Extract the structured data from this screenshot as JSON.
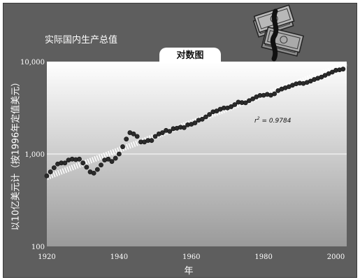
{
  "page": {
    "title": "实际国内生产总值",
    "tab_label": "对数图"
  },
  "icons": {
    "banner_icon": "money-stack-icon"
  },
  "colors": {
    "background": "#5e5e5e",
    "plot_top": "#ffffff",
    "plot_bottom": "#9a9a9a",
    "points": "#2b2b2b",
    "trend": "#ffffff"
  },
  "chart_data": {
    "type": "scatter",
    "title": "对数图",
    "xlabel": "年",
    "ylabel": "以10亿美元计（按1996年定值美元）",
    "xlim": [
      1920,
      2003
    ],
    "ylim": [
      100,
      10000
    ],
    "yscale": "log",
    "x_ticks": [
      1920,
      1940,
      1960,
      1980,
      2000
    ],
    "y_ticks": [
      100,
      1000,
      10000
    ],
    "y_tick_labels": [
      "100",
      "1,000",
      "10,000"
    ],
    "grid": "horizontal at 1,000",
    "annotation": "r² = 0.9784",
    "annotation_parts": {
      "symbol": "r",
      "superscript": "2",
      "value": "= 0.9784"
    },
    "series": [
      {
        "x": [
          1920,
          1921,
          1922,
          1923,
          1924,
          1925,
          1926,
          1927,
          1928,
          1929,
          1930,
          1931,
          1932,
          1933,
          1934,
          1935,
          1936,
          1937,
          1938,
          1939,
          1940,
          1941,
          1942,
          1943,
          1944,
          1945,
          1946,
          1947,
          1948,
          1949,
          1950,
          1951,
          1952,
          1953,
          1954,
          1955,
          1956,
          1957,
          1958,
          1959,
          1960,
          1961,
          1962,
          1963,
          1964,
          1965,
          1966,
          1967,
          1968,
          1969,
          1970,
          1971,
          1972,
          1973,
          1974,
          1975,
          1976,
          1977,
          1978,
          1979,
          1980,
          1981,
          1982,
          1983,
          1984,
          1985,
          1986,
          1987,
          1988,
          1989,
          1990,
          1991,
          1992,
          1993,
          1994,
          1995,
          1996,
          1997,
          1998,
          1999,
          2000,
          2001,
          2002
        ],
        "values": [
          580,
          640,
          710,
          780,
          800,
          800,
          860,
          880,
          870,
          880,
          800,
          720,
          640,
          620,
          680,
          760,
          860,
          880,
          830,
          900,
          1000,
          1200,
          1450,
          1700,
          1650,
          1550,
          1350,
          1350,
          1400,
          1400,
          1550,
          1650,
          1700,
          1800,
          1760,
          1880,
          1900,
          1950,
          1930,
          2070,
          2100,
          2170,
          2320,
          2380,
          2520,
          2680,
          2860,
          2920,
          3050,
          3150,
          3150,
          3250,
          3420,
          3640,
          3600,
          3580,
          3780,
          3950,
          4150,
          4300,
          4320,
          4420,
          4330,
          4480,
          4850,
          5050,
          5200,
          5350,
          5550,
          5750,
          5850,
          5800,
          5950,
          6150,
          6400,
          6600,
          6800,
          7100,
          7400,
          7700,
          8050,
          8150,
          8300
        ]
      },
      {
        "name": "trend",
        "x": [
          1920,
          2003
        ],
        "values": [
          560,
          9500
        ]
      }
    ]
  }
}
